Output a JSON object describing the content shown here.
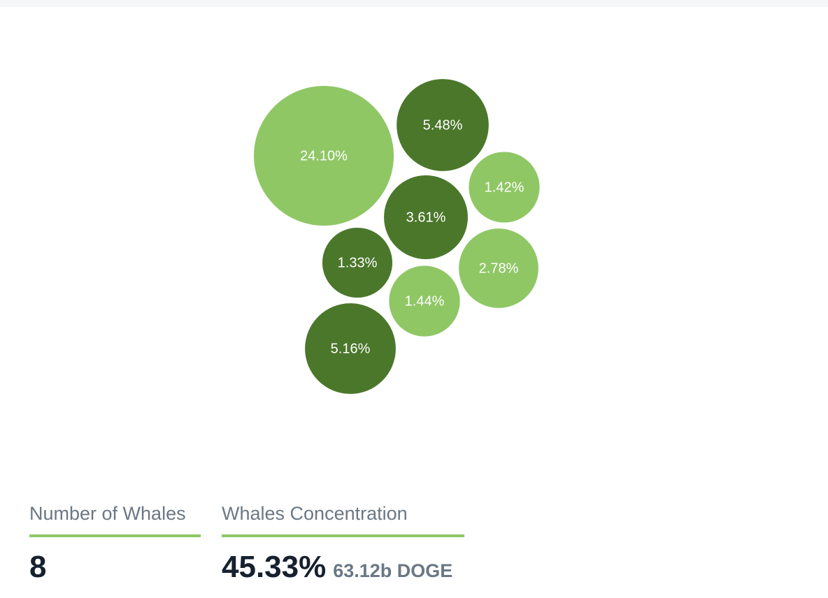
{
  "chart_data": {
    "type": "bubble",
    "values": [
      24.1,
      5.48,
      1.42,
      3.61,
      1.33,
      2.78,
      1.44,
      5.16
    ],
    "value_labels": [
      "24.10%",
      "5.48%",
      "1.42%",
      "3.61%",
      "1.33%",
      "2.78%",
      "1.44%",
      "5.16%"
    ],
    "colors": [
      "#8fc765",
      "#4b772b",
      "#8fc765",
      "#4b772b",
      "#4b772b",
      "#8fc765",
      "#8fc765",
      "#4b772b"
    ]
  },
  "stats": [
    {
      "label": "Number of Whales",
      "value": "8"
    },
    {
      "label": "Whales Concentration",
      "value": "45.33%",
      "detail": "63.12b DOGE"
    }
  ]
}
